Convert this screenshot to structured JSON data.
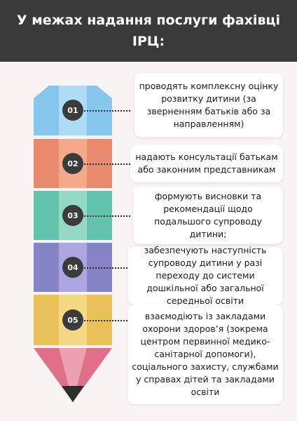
{
  "title": "У межах надання послуги фахівці ІРЦ:",
  "colors": {
    "header": "#3a3a3a",
    "segment_1": "#86c6ec",
    "segment_2": "#ec8c70",
    "segment_3": "#67c6b0",
    "segment_4": "#8a86c8",
    "segment_5": "#ecc65a",
    "pencil_tip": "#e0738a"
  },
  "steps": [
    {
      "number": "01",
      "text": "проводять комплексну оцінку розвитку дитини (за зверненням батьків або за направленням)"
    },
    {
      "number": "02",
      "text": "надають консультації батькам або законним представникам"
    },
    {
      "number": "03",
      "text": "формують висновки та рекомендації щодо подальшого супроводу дитини;"
    },
    {
      "number": "04",
      "text": "забезпечують наступність супроводу дитини у разі переходу до системи дошкільної або загальної середньої освіти"
    },
    {
      "number": "05",
      "text": "взаємодіють із закладами охорони здоров’я (зокрема центром первинної медико-санітарної допомоги), соціального захисту, службами у справах дітей та закладами освіти"
    }
  ]
}
